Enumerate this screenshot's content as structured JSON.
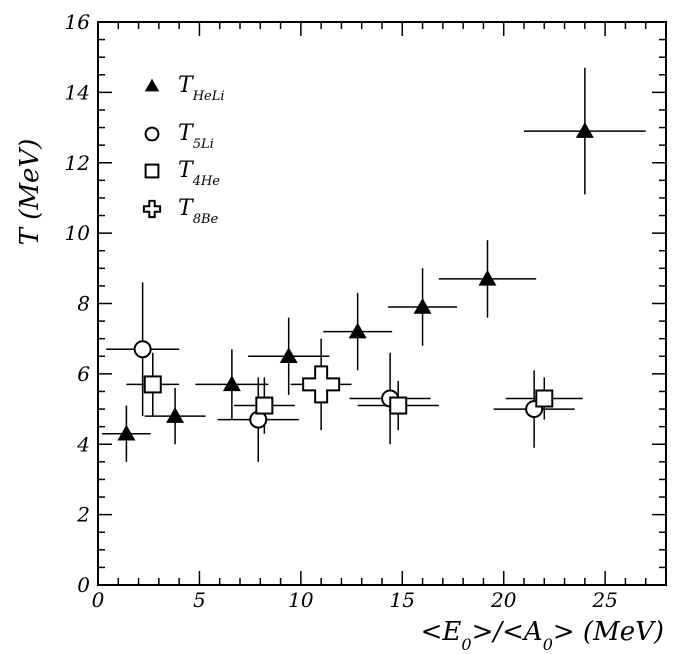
{
  "chart_data": {
    "type": "scatter",
    "xlabel_parts": [
      "<E",
      "0",
      ">/<A",
      "0",
      "> (MeV)"
    ],
    "ylabel": "T (MeV)",
    "xlim": [
      0,
      28
    ],
    "ylim": [
      0,
      16
    ],
    "x_ticks": [
      0,
      5,
      10,
      15,
      20,
      25
    ],
    "y_ticks": [
      0,
      2,
      4,
      6,
      8,
      10,
      12,
      14,
      16
    ],
    "legend_position": "top-left",
    "series": [
      {
        "name_main": "T",
        "name_sub": "HeLi",
        "marker": "filled-triangle",
        "points": [
          {
            "x": 1.4,
            "y": 4.3,
            "xerr": 1.2,
            "yerr": 0.8
          },
          {
            "x": 3.8,
            "y": 4.8,
            "xerr": 1.5,
            "yerr": 0.8
          },
          {
            "x": 6.6,
            "y": 5.7,
            "xerr": 1.8,
            "yerr": 1.0
          },
          {
            "x": 9.4,
            "y": 6.5,
            "xerr": 2.0,
            "yerr": 1.1
          },
          {
            "x": 12.8,
            "y": 7.2,
            "xerr": 1.7,
            "yerr": 1.1
          },
          {
            "x": 16.0,
            "y": 7.9,
            "xerr": 1.7,
            "yerr": 1.1
          },
          {
            "x": 19.2,
            "y": 8.7,
            "xerr": 2.4,
            "yerr": 1.1
          },
          {
            "x": 24.0,
            "y": 12.9,
            "xerr": 3.0,
            "yerr": 1.8
          }
        ]
      },
      {
        "name_main": "T",
        "name_sub": "5Li",
        "marker": "open-circle",
        "points": [
          {
            "x": 2.2,
            "y": 6.7,
            "xerr": 1.8,
            "yerr": 1.9
          },
          {
            "x": 7.9,
            "y": 4.7,
            "xerr": 2.0,
            "yerr": 1.2
          },
          {
            "x": 14.4,
            "y": 5.3,
            "xerr": 2.0,
            "yerr": 1.3
          },
          {
            "x": 21.5,
            "y": 5.0,
            "xerr": 2.0,
            "yerr": 1.1
          }
        ]
      },
      {
        "name_main": "T",
        "name_sub": "4He",
        "marker": "open-square",
        "points": [
          {
            "x": 2.7,
            "y": 5.7,
            "xerr": 1.3,
            "yerr": 0.9
          },
          {
            "x": 8.2,
            "y": 5.1,
            "xerr": 1.5,
            "yerr": 0.8
          },
          {
            "x": 14.8,
            "y": 5.1,
            "xerr": 2.0,
            "yerr": 0.7
          },
          {
            "x": 22.0,
            "y": 5.3,
            "xerr": 1.9,
            "yerr": 0.6
          }
        ]
      },
      {
        "name_main": "T",
        "name_sub": "8Be",
        "marker": "open-cross",
        "points": [
          {
            "x": 11.0,
            "y": 5.7,
            "xerr": 1.5,
            "yerr": 1.3
          }
        ]
      }
    ]
  }
}
